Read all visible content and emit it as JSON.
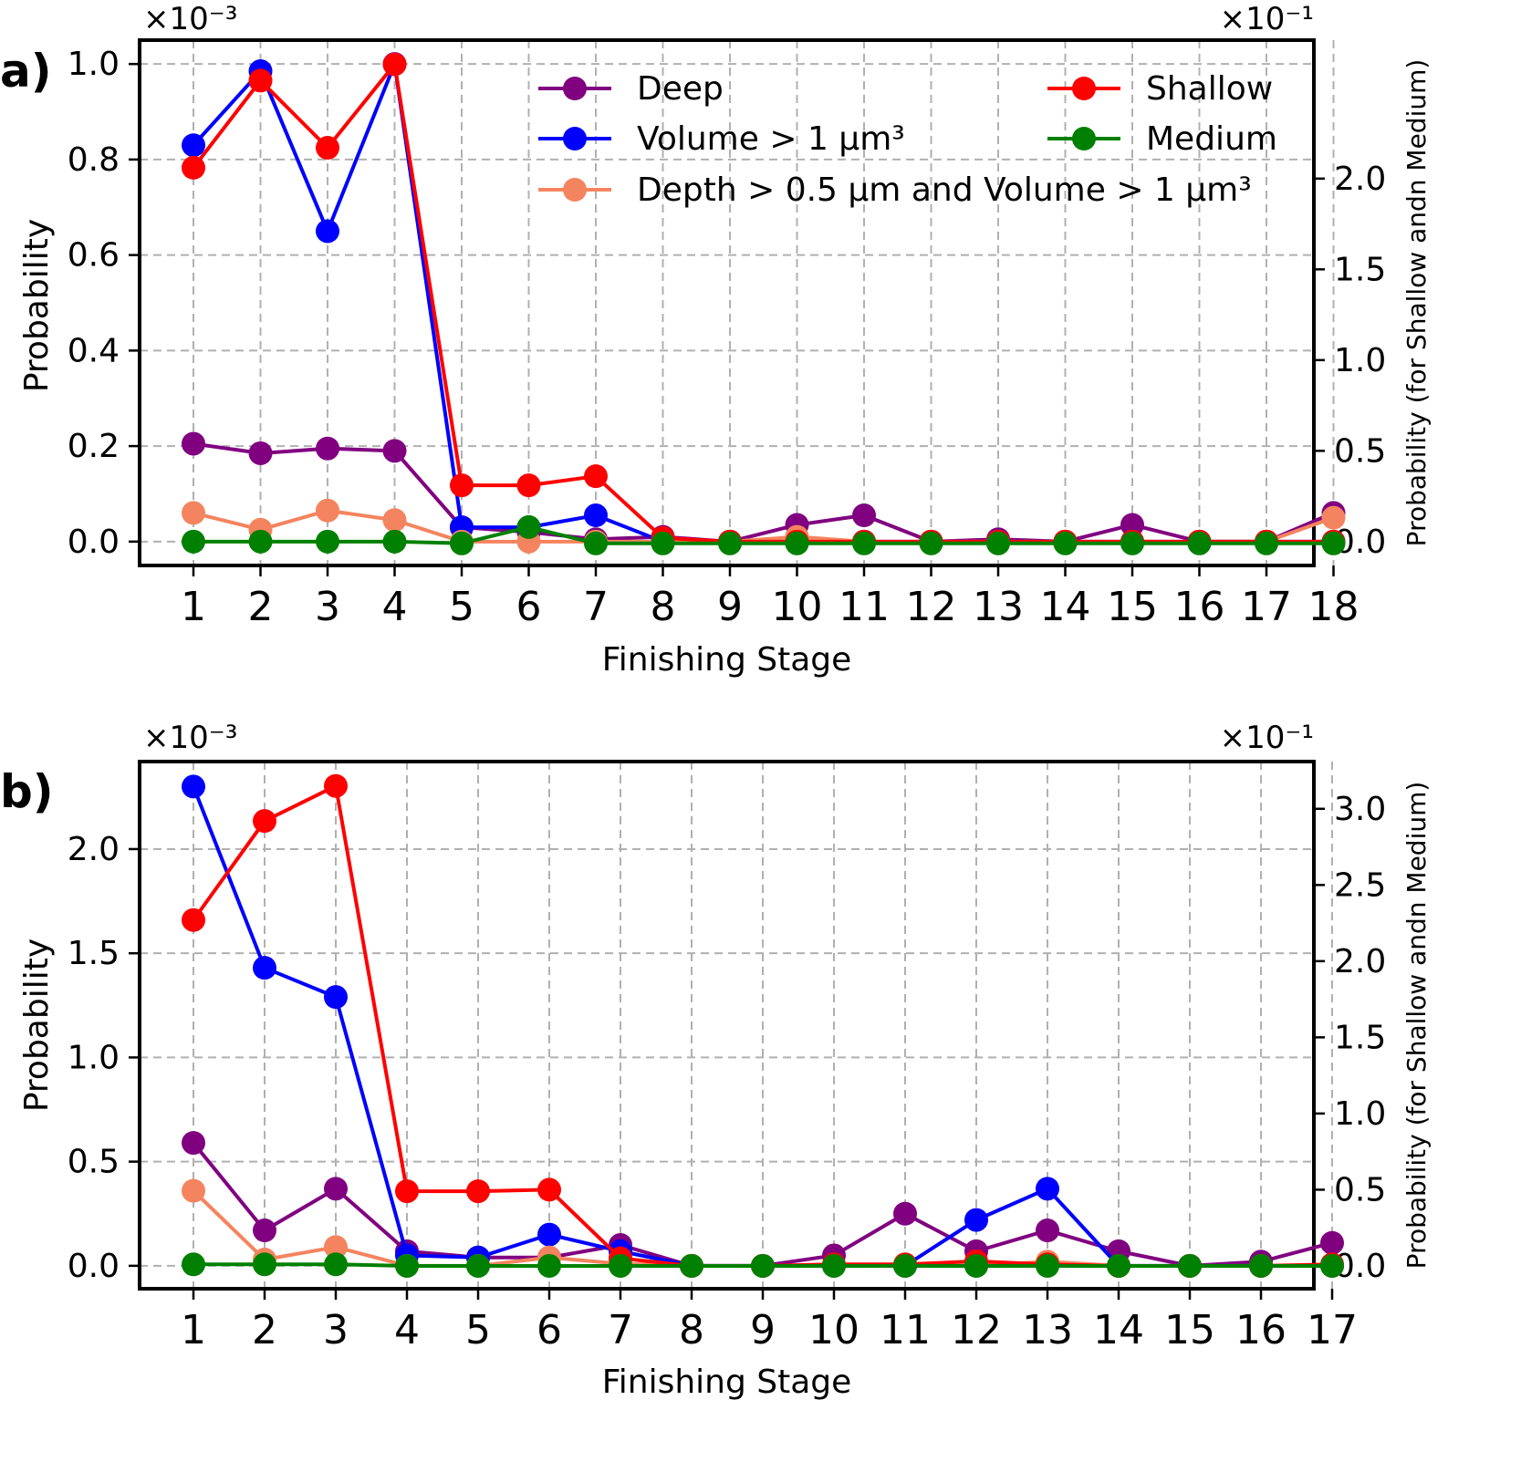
{
  "series_styles": [
    {
      "name": "Deep",
      "color": "#800080",
      "axis": "left"
    },
    {
      "name": "Volume > 1 µm³",
      "color": "#0000ff",
      "axis": "left"
    },
    {
      "name": "Depth > 0.5 µm and Volume > 1 µm³",
      "color": "#f4845f",
      "axis": "left"
    },
    {
      "name": "Shallow",
      "color": "#ff0000",
      "axis": "right"
    },
    {
      "name": "Medium",
      "color": "#008000",
      "axis": "right"
    }
  ],
  "chart_data": [
    {
      "type": "line",
      "panel_label": "a)",
      "xlabel": "Finishing Stage",
      "ylabel": "Probability",
      "ylabel_right": "Probability (for Shallow andn Medium)",
      "left_scale_label": "×10⁻³",
      "right_scale_label": "×10⁻¹",
      "x": [
        1,
        2,
        3,
        4,
        5,
        6,
        7,
        8,
        9,
        10,
        11,
        12,
        13,
        14,
        15,
        16,
        17,
        18
      ],
      "ylim": [
        -0.05,
        1.05
      ],
      "yticks": [
        0.0,
        0.2,
        0.4,
        0.6,
        0.8,
        1.0
      ],
      "ylim_right": [
        -0.1316,
        2.763
      ],
      "yticks_right": [
        0.0,
        0.5,
        1.0,
        1.5,
        2.0
      ],
      "grid": true,
      "legend": "top-right",
      "series": [
        {
          "name": "Deep",
          "axis": "left",
          "values": [
            0.205,
            0.185,
            0.195,
            0.19,
            0.03,
            0.02,
            0.005,
            0.01,
            0.0,
            0.035,
            0.055,
            0.0,
            0.005,
            0.0,
            0.035,
            0.0,
            0.0,
            0.06
          ]
        },
        {
          "name": "Volume > 1 µm³",
          "axis": "left",
          "values": [
            0.83,
            0.985,
            0.65,
            1.0,
            0.03,
            0.03,
            0.055,
            0.0,
            0.0,
            0.0,
            0.0,
            0.0,
            0.0,
            0.0,
            0.0,
            0.0,
            0.0,
            0.0
          ]
        },
        {
          "name": "Depth > 0.5 µm and Volume > 1 µm³",
          "axis": "left",
          "values": [
            0.06,
            0.025,
            0.065,
            0.045,
            0.0,
            0.0,
            0.0,
            0.0,
            0.0,
            0.01,
            0.0,
            0.0,
            0.0,
            0.0,
            0.0,
            0.0,
            0.0,
            0.05
          ]
        },
        {
          "name": "Shallow",
          "axis": "right",
          "values": [
            2.06,
            2.54,
            2.17,
            2.63,
            0.31,
            0.31,
            0.36,
            0.02,
            0.0,
            0.0,
            0.0,
            0.0,
            0.0,
            0.0,
            0.0,
            0.0,
            0.0,
            0.0
          ]
        },
        {
          "name": "Medium",
          "axis": "right",
          "values": [
            0.0,
            0.0,
            0.0,
            0.0,
            -0.01,
            0.08,
            -0.01,
            -0.01,
            -0.01,
            -0.01,
            -0.01,
            -0.01,
            -0.01,
            -0.01,
            -0.01,
            -0.01,
            -0.01,
            -0.01
          ]
        }
      ]
    },
    {
      "type": "line",
      "panel_label": "b)",
      "xlabel": "Finishing Stage",
      "ylabel": "Probability",
      "ylabel_right": "Probability (for Shallow andn Medium)",
      "left_scale_label": "×10⁻³",
      "right_scale_label": "×10⁻¹",
      "x": [
        1,
        2,
        3,
        4,
        5,
        6,
        7,
        8,
        9,
        10,
        11,
        12,
        13,
        14,
        15,
        16,
        17
      ],
      "ylim": [
        -0.11,
        2.42
      ],
      "yticks": [
        0.0,
        0.5,
        1.0,
        1.5,
        2.0
      ],
      "ylim_right": [
        -0.15,
        3.31
      ],
      "yticks_right": [
        0.0,
        0.5,
        1.0,
        1.5,
        2.0,
        2.5,
        3.0
      ],
      "grid": true,
      "legend": "none",
      "series": [
        {
          "name": "Deep",
          "axis": "left",
          "values": [
            0.59,
            0.17,
            0.37,
            0.07,
            0.04,
            0.04,
            0.1,
            0.0,
            0.0,
            0.05,
            0.25,
            0.07,
            0.17,
            0.07,
            0.0,
            0.02,
            0.11
          ]
        },
        {
          "name": "Volume > 1 µm³",
          "axis": "left",
          "values": [
            2.3,
            1.43,
            1.29,
            0.05,
            0.04,
            0.15,
            0.07,
            0.0,
            0.0,
            0.0,
            0.0,
            0.22,
            0.37,
            0.0,
            0.0,
            0.0,
            0.0
          ]
        },
        {
          "name": "Depth > 0.5 µm and Volume > 1 µm³",
          "axis": "left",
          "values": [
            0.36,
            0.03,
            0.09,
            0.0,
            0.0,
            0.04,
            0.01,
            0.0,
            0.0,
            0.0,
            0.0,
            0.0,
            0.02,
            0.0,
            0.0,
            0.0,
            0.0
          ]
        },
        {
          "name": "Shallow",
          "axis": "right",
          "values": [
            2.27,
            2.92,
            3.15,
            0.49,
            0.49,
            0.5,
            0.05,
            0.0,
            0.0,
            0.01,
            0.01,
            0.03,
            0.01,
            0.0,
            0.0,
            0.0,
            0.01
          ]
        },
        {
          "name": "Medium",
          "axis": "right",
          "values": [
            0.01,
            0.01,
            0.01,
            0.0,
            0.0,
            0.0,
            0.0,
            0.0,
            0.0,
            0.0,
            0.0,
            0.0,
            0.0,
            0.0,
            0.0,
            0.0,
            0.0
          ]
        }
      ]
    }
  ]
}
